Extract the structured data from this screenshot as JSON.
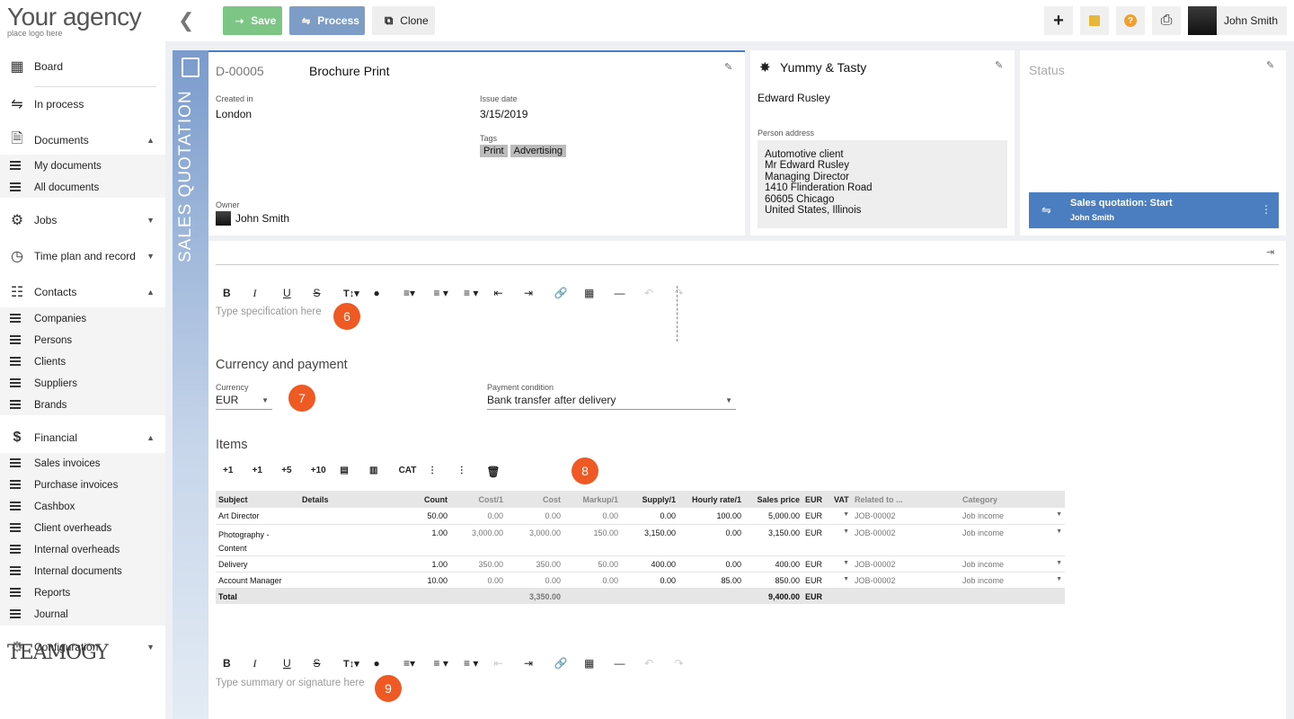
{
  "topbar": {
    "logo_title": "Your agency",
    "logo_sub": "place logo here",
    "save_label": "Save",
    "process_label": "Process",
    "clone_label": "Clone",
    "user_name": "John Smith"
  },
  "sidebar": {
    "board": "Board",
    "in_process": "In process",
    "documents": "Documents",
    "my_documents": "My documents",
    "all_documents": "All documents",
    "jobs": "Jobs",
    "time_plan": "Time plan and record",
    "contacts": "Contacts",
    "companies": "Companies",
    "persons": "Persons",
    "clients": "Clients",
    "suppliers": "Suppliers",
    "brands": "Brands",
    "financial": "Financial",
    "sales_invoices": "Sales invoices",
    "purchase_invoices": "Purchase invoices",
    "cashbox": "Cashbox",
    "client_overheads": "Client overheads",
    "internal_overheads": "Internal overheads",
    "internal_documents": "Internal documents",
    "reports": "Reports",
    "journal": "Journal",
    "configuration": "Configuration",
    "brand": "TEAMOGY"
  },
  "doc": {
    "type_label": "SALES QUOTATION",
    "number": "D-00005",
    "title": "Brochure Print",
    "created_in_label": "Created in",
    "created_in": "London",
    "issue_date_label": "Issue date",
    "issue_date": "3/15/2019",
    "tags_label": "Tags",
    "tags": [
      "Print",
      "Advertising"
    ],
    "owner_label": "Owner",
    "owner": "John Smith"
  },
  "client": {
    "name": "Yummy & Tasty",
    "person": "Edward Rusley",
    "address_label": "Person address",
    "address_lines": [
      "Automotive client",
      "Mr  Edward Rusley",
      "Managing Director",
      "1410  Flinderation Road",
      "60605 Chicago",
      "United States, Illinois"
    ]
  },
  "status": {
    "label": "Status",
    "workflow_title": "Sales quotation: Start",
    "workflow_user": "John Smith"
  },
  "editor": {
    "spec_placeholder": "Type specification here",
    "summary_placeholder": "Type summary or signature here",
    "badge_spec": "6",
    "badge_summary": "9"
  },
  "currency_section": {
    "title": "Currency and payment",
    "currency_label": "Currency",
    "currency": "EUR",
    "payment_label": "Payment condition",
    "payment": "Bank transfer after delivery",
    "badge": "7"
  },
  "items": {
    "title": "Items",
    "badge": "8",
    "toolbar": [
      "+1",
      "+1",
      "+5",
      "+10",
      "",
      "",
      "CAT",
      "",
      "",
      ""
    ],
    "headers": [
      "Subject",
      "Details",
      "Count",
      "Cost/1",
      "Cost",
      "Markup/1",
      "Supply/1",
      "Hourly rate/1",
      "Sales price",
      "EUR",
      "VAT",
      "Related to ...",
      "Category"
    ],
    "rows": [
      [
        "Art Director",
        "",
        "50.00",
        "0.00",
        "0.00",
        "0.00",
        "0.00",
        "100.00",
        "5,000.00",
        "EUR",
        "",
        "JOB-00002",
        "Job income"
      ],
      [
        "Photography - Content",
        "",
        "1.00",
        "3,000.00",
        "3,000.00",
        "150.00",
        "3,150.00",
        "0.00",
        "3,150.00",
        "EUR",
        "",
        "JOB-00002",
        "Job income"
      ],
      [
        "Delivery",
        "",
        "1.00",
        "350.00",
        "350.00",
        "50.00",
        "400.00",
        "0.00",
        "400.00",
        "EUR",
        "",
        "JOB-00002",
        "Job income"
      ],
      [
        "Account Manager",
        "",
        "10.00",
        "0.00",
        "0.00",
        "0.00",
        "0.00",
        "85.00",
        "850.00",
        "EUR",
        "",
        "JOB-00002",
        "Job income"
      ]
    ],
    "total_label": "Total",
    "total_cost": "3,350.00",
    "total_sales": "9,400.00",
    "total_currency": "EUR"
  }
}
